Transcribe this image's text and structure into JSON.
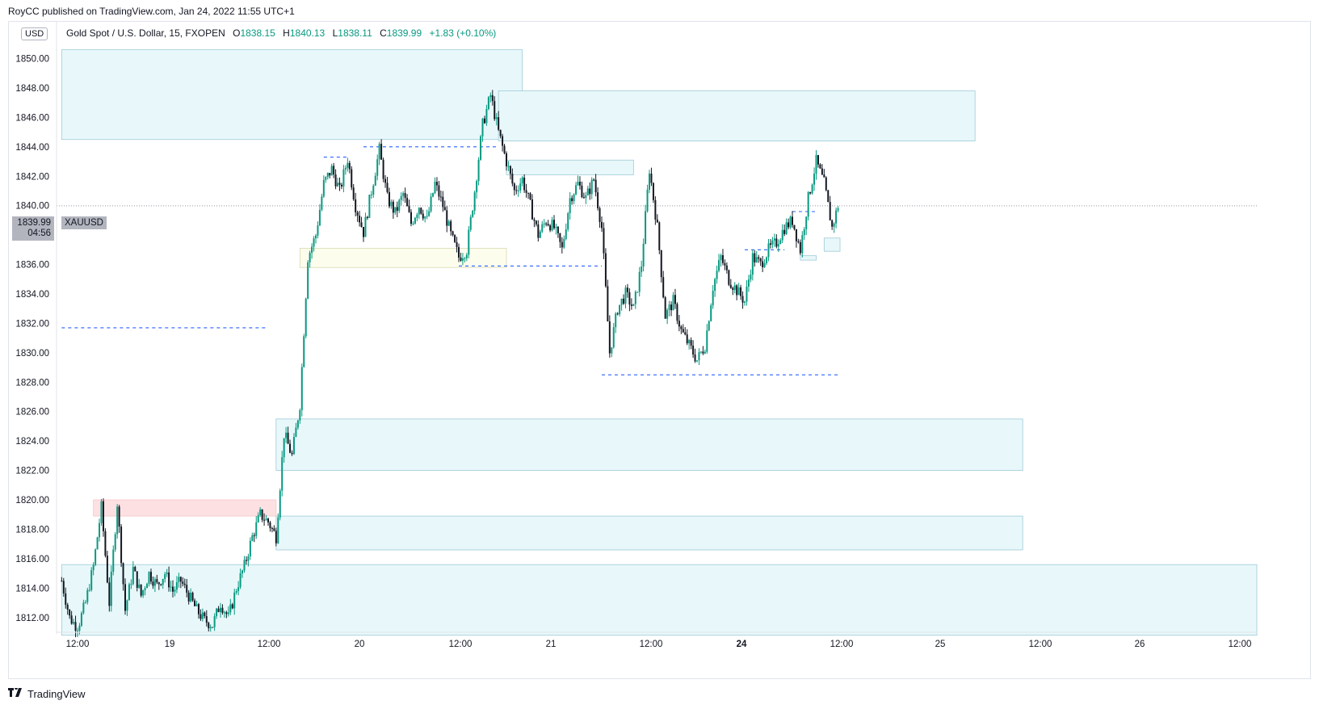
{
  "header": {
    "published": "RoyCC published on TradingView.com, Jan 24, 2022 11:55 UTC+1"
  },
  "legend": {
    "symbol": "Gold Spot / U.S. Dollar, 15, FXOPEN",
    "o_label": "O",
    "o_value": "1838.15",
    "h_label": "H",
    "h_value": "1840.13",
    "l_label": "L",
    "l_value": "1838.11",
    "c_label": "C",
    "c_value": "1839.99",
    "change": "+1.83 (+0.10%)"
  },
  "currency_button": "USD",
  "price_tag": {
    "price": "1839.99",
    "countdown": "04:56",
    "symbol": "XAUUSD"
  },
  "footer": {
    "brand": "TradingView",
    "logo_icon": "tradingview-logo-icon"
  },
  "colors": {
    "up": "#089981",
    "down": "#131722",
    "zone_blue": "#e8f8fa",
    "zone_blue_border": "#9fc9d6",
    "zone_red": "#fde0e2",
    "zone_yellow": "#fdfdee",
    "dash_line": "#2962ff",
    "grid": "#ffffff"
  },
  "chart_data": {
    "type": "candlestick",
    "timeframe": "15",
    "ylim": [
      1811.0,
      1852.5
    ],
    "y_ticks": [
      "1812.00",
      "1814.00",
      "1816.00",
      "1818.00",
      "1820.00",
      "1822.00",
      "1824.00",
      "1826.00",
      "1828.00",
      "1830.00",
      "1832.00",
      "1834.00",
      "1836.00",
      "1838.00",
      "1840.00",
      "1842.00",
      "1844.00",
      "1846.00",
      "1848.00",
      "1850.00"
    ],
    "x_ticks": [
      "12:00",
      "19",
      "12:00",
      "20",
      "12:00",
      "21",
      "12:00",
      "24",
      "12:00",
      "25",
      "12:00",
      "26",
      "12:00"
    ],
    "bold_x_ticks": [
      "24"
    ],
    "current_price": 1839.99,
    "zones": [
      {
        "color": "blue",
        "x0": "Jan 18 10:00",
        "x1": "Jan 20 20:00",
        "y_low": 1844.5,
        "y_high": 1850.6
      },
      {
        "color": "blue",
        "x0": "Jan 20 17:00",
        "x1": "Jan 25 05:00",
        "y_low": 1844.4,
        "y_high": 1847.8
      },
      {
        "color": "blue",
        "x0": "Jan 20 18:00",
        "x1": "Jan 21 10:00",
        "y_low": 1842.1,
        "y_high": 1843.1
      },
      {
        "color": "yellow",
        "x0": "Jan 19 16:00",
        "x1": "Jan 20 18:00",
        "y_low": 1835.8,
        "y_high": 1837.1
      },
      {
        "color": "blue",
        "x0": "Jan 19 13:00",
        "x1": "Jan 25 11:00",
        "y_low": 1822.0,
        "y_high": 1825.5
      },
      {
        "color": "red",
        "x0": "Jan 18 14:00",
        "x1": "Jan 19 13:00",
        "y_low": 1818.9,
        "y_high": 1820.0
      },
      {
        "color": "blue",
        "x0": "Jan 19 13:00",
        "x1": "Jan 25 11:00",
        "y_low": 1816.6,
        "y_high": 1818.9
      },
      {
        "color": "blue",
        "x0": "Jan 18 10:00",
        "x1": "Jan 26 17:00",
        "y_low": 1810.8,
        "y_high": 1815.6
      },
      {
        "color": "blue",
        "x0": "Jan 24 10:00",
        "x1": "Jan 24 12:00",
        "y_low": 1836.9,
        "y_high": 1837.8
      },
      {
        "color": "blue",
        "x0": "Jan 24 07:00",
        "x1": "Jan 24 09:00",
        "y_low": 1836.3,
        "y_high": 1836.6
      }
    ],
    "dashed_levels": [
      {
        "price": 1831.7,
        "x0": "Jan 18 10:00",
        "x1": "Jan 19 12:00"
      },
      {
        "price": 1843.3,
        "x0": "Jan 19 19:00",
        "x1": "Jan 19 22:00"
      },
      {
        "price": 1844.0,
        "x0": "Jan 20 00:00",
        "x1": "Jan 20 17:00"
      },
      {
        "price": 1835.9,
        "x0": "Jan 20 12:00",
        "x1": "Jan 21 06:00"
      },
      {
        "price": 1828.5,
        "x0": "Jan 21 06:00",
        "x1": "Jan 24 12:00"
      },
      {
        "price": 1837.0,
        "x0": "Jan 24 00:00",
        "x1": "Jan 24 05:00"
      },
      {
        "price": 1839.6,
        "x0": "Jan 24 06:00",
        "x1": "Jan 24 09:00"
      }
    ],
    "path": [
      [
        "Jan 18 10:00",
        1814.5
      ],
      [
        "Jan 18 11:00",
        1812.0
      ],
      [
        "Jan 18 12:00",
        1811.3
      ],
      [
        "Jan 18 13:00",
        1813.0
      ],
      [
        "Jan 18 14:00",
        1815.5
      ],
      [
        "Jan 18 15:00",
        1819.5
      ],
      [
        "Jan 18 16:00",
        1813.0
      ],
      [
        "Jan 18 17:00",
        1819.8
      ],
      [
        "Jan 18 18:00",
        1812.5
      ],
      [
        "Jan 18 19:00",
        1815.3
      ],
      [
        "Jan 18 20:00",
        1813.5
      ],
      [
        "Jan 18 21:00",
        1815.0
      ],
      [
        "Jan 18 22:00",
        1814.2
      ],
      [
        "Jan 18 23:00",
        1815.0
      ],
      [
        "Jan 19 00:00",
        1813.8
      ],
      [
        "Jan 19 01:00",
        1814.5
      ],
      [
        "Jan 19 02:00",
        1813.5
      ],
      [
        "Jan 19 03:00",
        1812.5
      ],
      [
        "Jan 19 04:00",
        1811.8
      ],
      [
        "Jan 19 05:00",
        1811.5
      ],
      [
        "Jan 19 06:00",
        1813.0
      ],
      [
        "Jan 19 07:00",
        1812.0
      ],
      [
        "Jan 19 08:00",
        1814.0
      ],
      [
        "Jan 19 09:00",
        1815.5
      ],
      [
        "Jan 19 10:00",
        1817.5
      ],
      [
        "Jan 19 11:00",
        1819.0
      ],
      [
        "Jan 19 12:00",
        1818.5
      ],
      [
        "Jan 19 13:00",
        1817.5
      ],
      [
        "Jan 19 14:00",
        1824.5
      ],
      [
        "Jan 19 15:00",
        1823.0
      ],
      [
        "Jan 19 16:00",
        1826.5
      ],
      [
        "Jan 19 17:00",
        1836.5
      ],
      [
        "Jan 19 18:00",
        1838.0
      ],
      [
        "Jan 19 19:00",
        1841.5
      ],
      [
        "Jan 19 20:00",
        1842.5
      ],
      [
        "Jan 19 21:00",
        1841.0
      ],
      [
        "Jan 19 22:00",
        1843.2
      ],
      [
        "Jan 19 23:00",
        1840.0
      ],
      [
        "Jan 20 00:00",
        1838.2
      ],
      [
        "Jan 20 01:00",
        1841.0
      ],
      [
        "Jan 20 02:00",
        1843.8
      ],
      [
        "Jan 20 03:00",
        1840.5
      ],
      [
        "Jan 20 04:00",
        1839.5
      ],
      [
        "Jan 20 05:00",
        1840.8
      ],
      [
        "Jan 20 06:00",
        1838.8
      ],
      [
        "Jan 20 07:00",
        1840.0
      ],
      [
        "Jan 20 08:00",
        1839.0
      ],
      [
        "Jan 20 09:00",
        1841.5
      ],
      [
        "Jan 20 10:00",
        1840.0
      ],
      [
        "Jan 20 11:00",
        1838.0
      ],
      [
        "Jan 20 12:00",
        1836.5
      ],
      [
        "Jan 20 13:00",
        1837.0
      ],
      [
        "Jan 20 14:00",
        1841.0
      ],
      [
        "Jan 20 15:00",
        1845.5
      ],
      [
        "Jan 20 16:00",
        1847.5
      ],
      [
        "Jan 20 17:00",
        1845.0
      ],
      [
        "Jan 20 18:00",
        1843.0
      ],
      [
        "Jan 20 19:00",
        1841.0
      ],
      [
        "Jan 20 20:00",
        1841.8
      ],
      [
        "Jan 20 21:00",
        1840.0
      ],
      [
        "Jan 20 22:00",
        1838.0
      ],
      [
        "Jan 20 23:00",
        1839.0
      ],
      [
        "Jan 21 00:00",
        1838.5
      ],
      [
        "Jan 21 01:00",
        1837.0
      ],
      [
        "Jan 21 02:00",
        1840.5
      ],
      [
        "Jan 21 03:00",
        1841.5
      ],
      [
        "Jan 21 04:00",
        1840.5
      ],
      [
        "Jan 21 05:00",
        1841.8
      ],
      [
        "Jan 21 06:00",
        1838.5
      ],
      [
        "Jan 21 07:00",
        1830.0
      ],
      [
        "Jan 21 08:00",
        1833.0
      ],
      [
        "Jan 21 09:00",
        1834.0
      ],
      [
        "Jan 21 10:00",
        1833.0
      ],
      [
        "Jan 21 11:00",
        1836.0
      ],
      [
        "Jan 21 12:00",
        1842.5
      ],
      [
        "Jan 21 13:00",
        1838.5
      ],
      [
        "Jan 21 14:00",
        1832.5
      ],
      [
        "Jan 21 15:00",
        1833.5
      ],
      [
        "Jan 21 16:00",
        1831.5
      ],
      [
        "Jan 21 17:00",
        1830.5
      ],
      [
        "Jan 21 18:00",
        1829.5
      ],
      [
        "Jan 21 19:00",
        1830.5
      ],
      [
        "Jan 21 20:00",
        1834.5
      ],
      [
        "Jan 21 21:00",
        1836.5
      ],
      [
        "Jan 21 22:00",
        1835.0
      ],
      [
        "Jan 24 00:00",
        1833.5
      ],
      [
        "Jan 24 01:00",
        1836.5
      ],
      [
        "Jan 24 02:00",
        1836.0
      ],
      [
        "Jan 24 03:00",
        1837.0
      ],
      [
        "Jan 24 04:00",
        1837.5
      ],
      [
        "Jan 24 05:00",
        1838.5
      ],
      [
        "Jan 24 06:00",
        1839.0
      ],
      [
        "Jan 24 07:00",
        1837.0
      ],
      [
        "Jan 24 08:00",
        1840.5
      ],
      [
        "Jan 24 09:00",
        1843.0
      ],
      [
        "Jan 24 10:00",
        1841.5
      ],
      [
        "Jan 24 11:00",
        1838.5
      ],
      [
        "Jan 24 11:45",
        1839.99
      ]
    ]
  }
}
